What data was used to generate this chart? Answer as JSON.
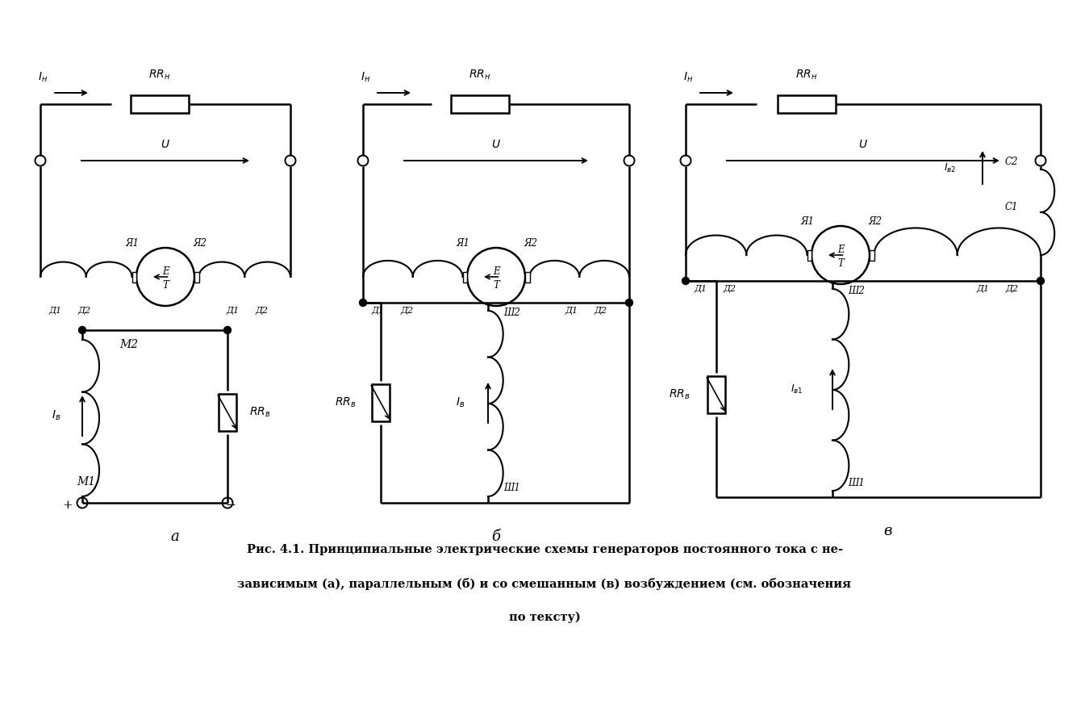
{
  "bg_color": "#ffffff",
  "line_color": "#000000",
  "caption_line1": "Рис. 4.1. Принципиальные электрические схемы генераторов постоянного тока с не-",
  "caption_line2": "зависимым (а), параллельным (б) и со смешанным (в) возбуждением (см. обозначения",
  "caption_line3": "по тексту)"
}
